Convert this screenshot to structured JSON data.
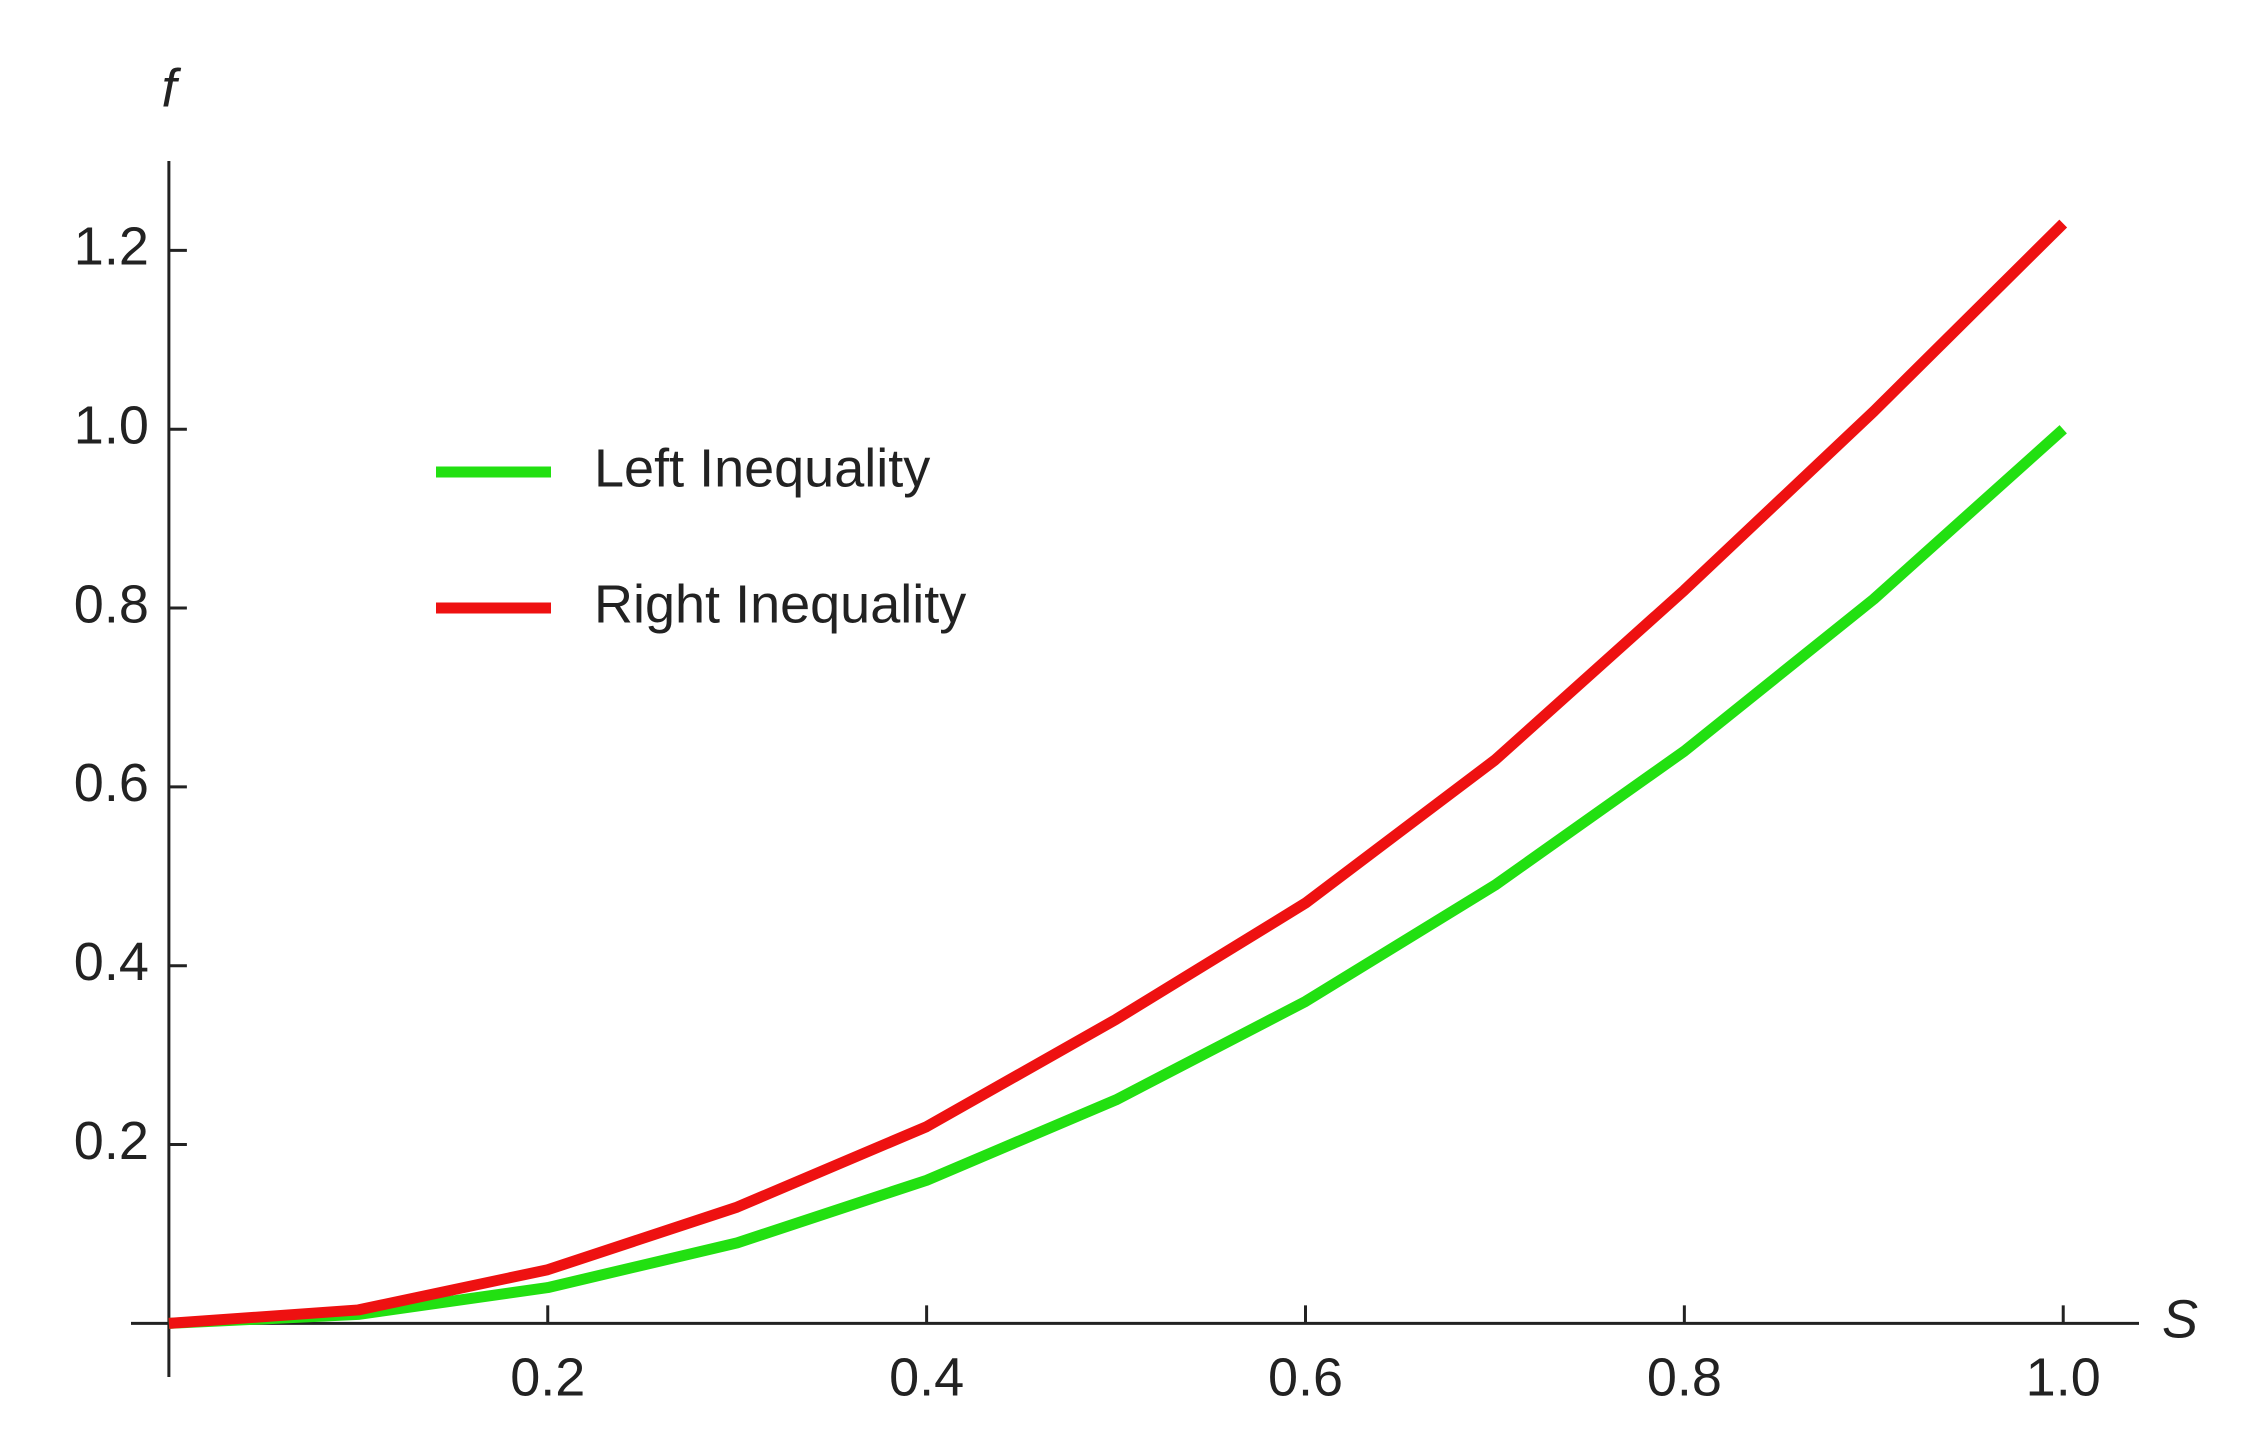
{
  "chart_data": {
    "type": "line",
    "x_label": "S",
    "y_label": "f",
    "x": [
      0,
      0.1,
      0.2,
      0.3,
      0.4,
      0.5,
      0.6,
      0.7,
      0.8,
      0.9,
      1.0
    ],
    "series": [
      {
        "name": "Left Inequality",
        "color": "#22e011",
        "values": [
          0,
          0.01,
          0.04,
          0.09,
          0.16,
          0.25,
          0.36,
          0.49,
          0.64,
          0.81,
          1.0
        ]
      },
      {
        "name": "Right Inequality",
        "color": "#ee1111",
        "values": [
          0,
          0.015,
          0.06,
          0.13,
          0.22,
          0.34,
          0.47,
          0.63,
          0.82,
          1.02,
          1.23
        ]
      }
    ],
    "xlim": [
      -0.02,
      1.04
    ],
    "ylim": [
      -0.06,
      1.3
    ],
    "xticks": [
      0.2,
      0.4,
      0.6,
      0.8,
      {
        "value": 1,
        "label": "1.0"
      }
    ],
    "yticks": [
      0.2,
      0.4,
      0.6,
      0.8,
      {
        "value": 1,
        "label": "1.0"
      },
      1.2
    ],
    "legend": "upper left",
    "grid": false
  }
}
